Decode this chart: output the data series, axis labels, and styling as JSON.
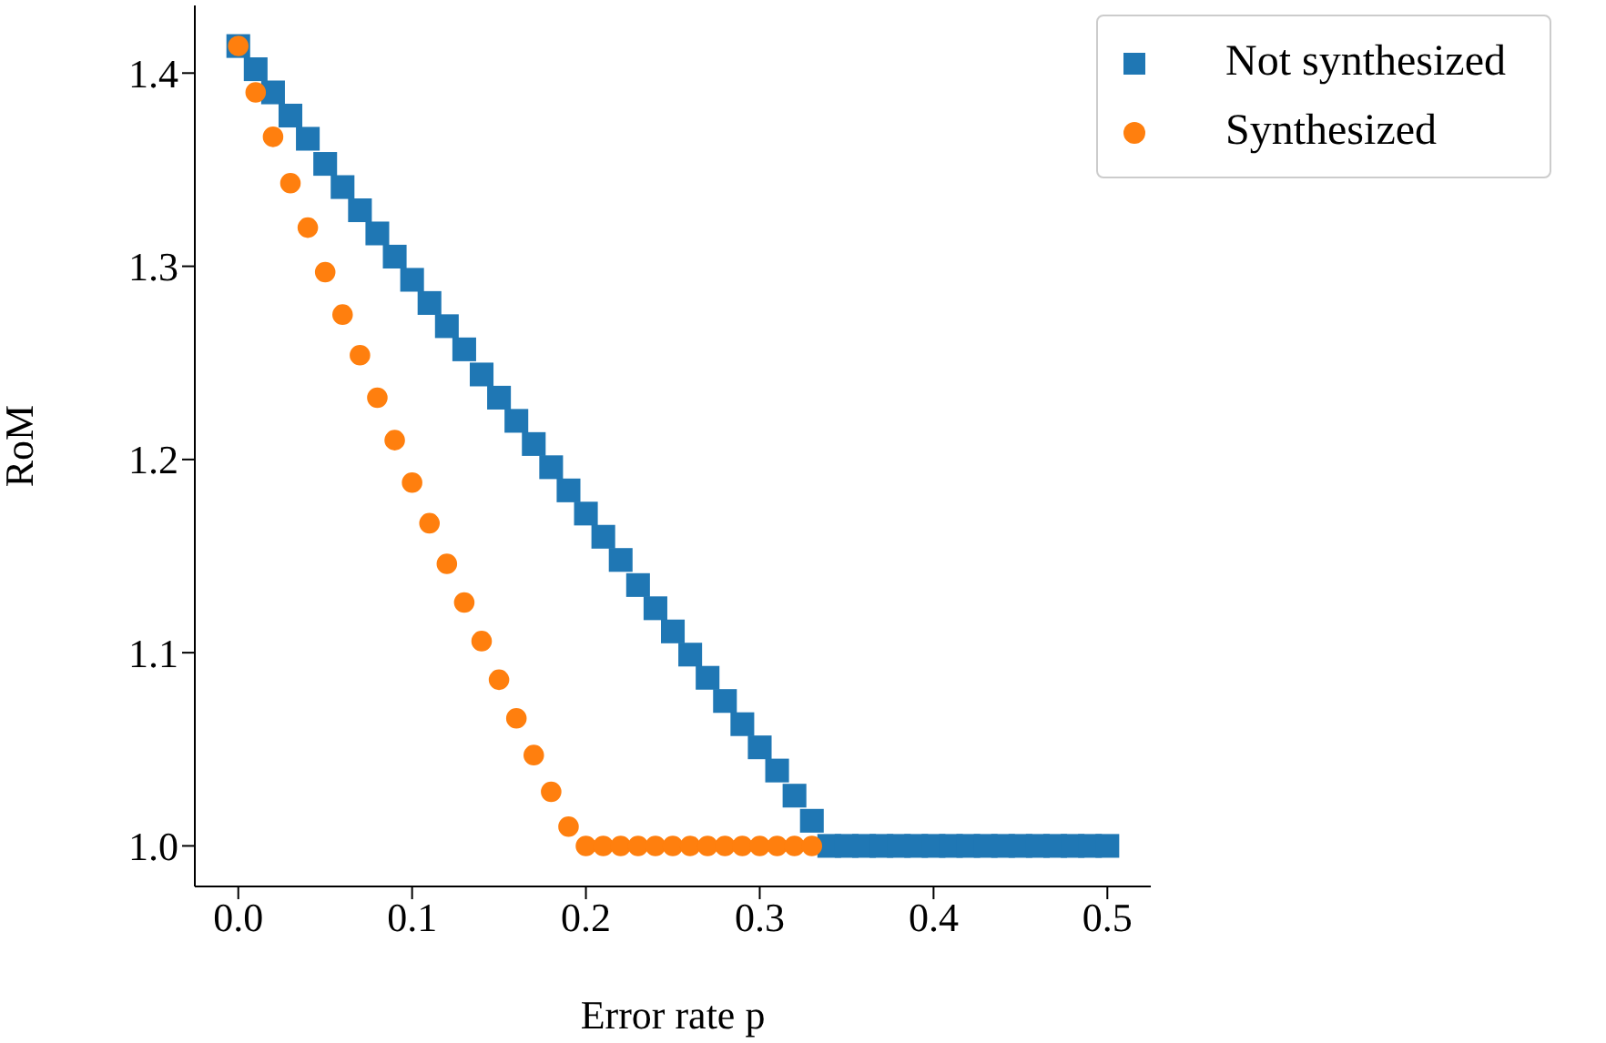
{
  "chart_data": {
    "type": "scatter",
    "xlabel": "Error rate p",
    "ylabel": "RoM",
    "series": [
      {
        "name": "Not synthesized",
        "color": "#1f77b4",
        "marker": "square",
        "x": [
          0,
          0.01,
          0.02,
          0.03,
          0.04,
          0.05,
          0.06,
          0.07,
          0.08,
          0.09,
          0.1,
          0.11,
          0.12,
          0.13,
          0.14,
          0.15,
          0.16,
          0.17,
          0.18,
          0.19,
          0.2,
          0.21,
          0.22,
          0.23,
          0.24,
          0.25,
          0.26,
          0.27,
          0.28,
          0.29,
          0.3,
          0.31,
          0.32,
          0.33,
          0.34,
          0.35,
          0.36,
          0.37,
          0.38,
          0.39,
          0.4,
          0.41,
          0.42,
          0.43,
          0.44,
          0.45,
          0.46,
          0.47,
          0.48,
          0.49,
          0.5
        ],
        "values": [
          1.414,
          1.402,
          1.39,
          1.378,
          1.366,
          1.353,
          1.341,
          1.329,
          1.317,
          1.305,
          1.293,
          1.281,
          1.269,
          1.257,
          1.244,
          1.232,
          1.22,
          1.208,
          1.196,
          1.184,
          1.172,
          1.16,
          1.148,
          1.135,
          1.123,
          1.111,
          1.099,
          1.087,
          1.075,
          1.063,
          1.051,
          1.039,
          1.026,
          1.013,
          1.0,
          1.0,
          1.0,
          1.0,
          1.0,
          1.0,
          1.0,
          1.0,
          1.0,
          1.0,
          1.0,
          1.0,
          1.0,
          1.0,
          1.0,
          1.0,
          1.0
        ]
      },
      {
        "name": "Synthesized",
        "color": "#ff7f0e",
        "marker": "circle",
        "x": [
          0,
          0.01,
          0.02,
          0.03,
          0.04,
          0.05,
          0.06,
          0.07,
          0.08,
          0.09,
          0.1,
          0.11,
          0.12,
          0.13,
          0.14,
          0.15,
          0.16,
          0.17,
          0.18,
          0.19,
          0.2,
          0.21,
          0.22,
          0.23,
          0.24,
          0.25,
          0.26,
          0.27,
          0.28,
          0.29,
          0.3,
          0.31,
          0.32,
          0.33
        ],
        "values": [
          1.414,
          1.39,
          1.367,
          1.343,
          1.32,
          1.297,
          1.275,
          1.254,
          1.232,
          1.21,
          1.188,
          1.167,
          1.146,
          1.126,
          1.106,
          1.086,
          1.066,
          1.047,
          1.028,
          1.01,
          1.0,
          1.0,
          1.0,
          1.0,
          1.0,
          1.0,
          1.0,
          1.0,
          1.0,
          1.0,
          1.0,
          1.0,
          1.0,
          1.0
        ]
      }
    ],
    "xlim": [
      -0.025,
      0.525
    ],
    "xticks": [
      {
        "value": 0,
        "label": "0.0"
      },
      0.1,
      0.2,
      0.3,
      0.4,
      0.5
    ],
    "ylim": [
      0.979,
      1.435
    ],
    "yticks": [
      {
        "value": 1.0,
        "label": "1.0"
      },
      1.1,
      1.2,
      1.3,
      1.4
    ],
    "grid": false,
    "legend": "top right"
  }
}
